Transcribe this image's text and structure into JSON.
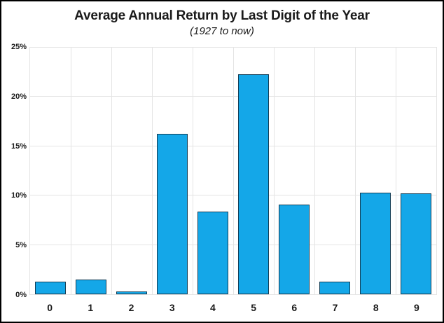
{
  "chart_data": {
    "type": "bar",
    "title": "Average Annual Return by Last Digit of the Year",
    "subtitle": "(1927 to now)",
    "xlabel": "",
    "ylabel": "",
    "categories": [
      "0",
      "1",
      "2",
      "3",
      "4",
      "5",
      "6",
      "7",
      "8",
      "9"
    ],
    "values": [
      1.3,
      1.5,
      0.3,
      16.3,
      8.4,
      22.3,
      9.1,
      1.3,
      10.3,
      10.2
    ],
    "ylim": [
      0,
      25
    ],
    "ytick_step": 5,
    "ytick_labels": [
      "0%",
      "5%",
      "10%",
      "15%",
      "20%",
      "25%"
    ],
    "grid": "on",
    "legend": "none",
    "bar_color": "#14A7E8",
    "bar_border_color": "#133C54",
    "grid_color": "#E4E4E4",
    "text_color": "#1A1A1A",
    "frame_color": "#000000"
  }
}
